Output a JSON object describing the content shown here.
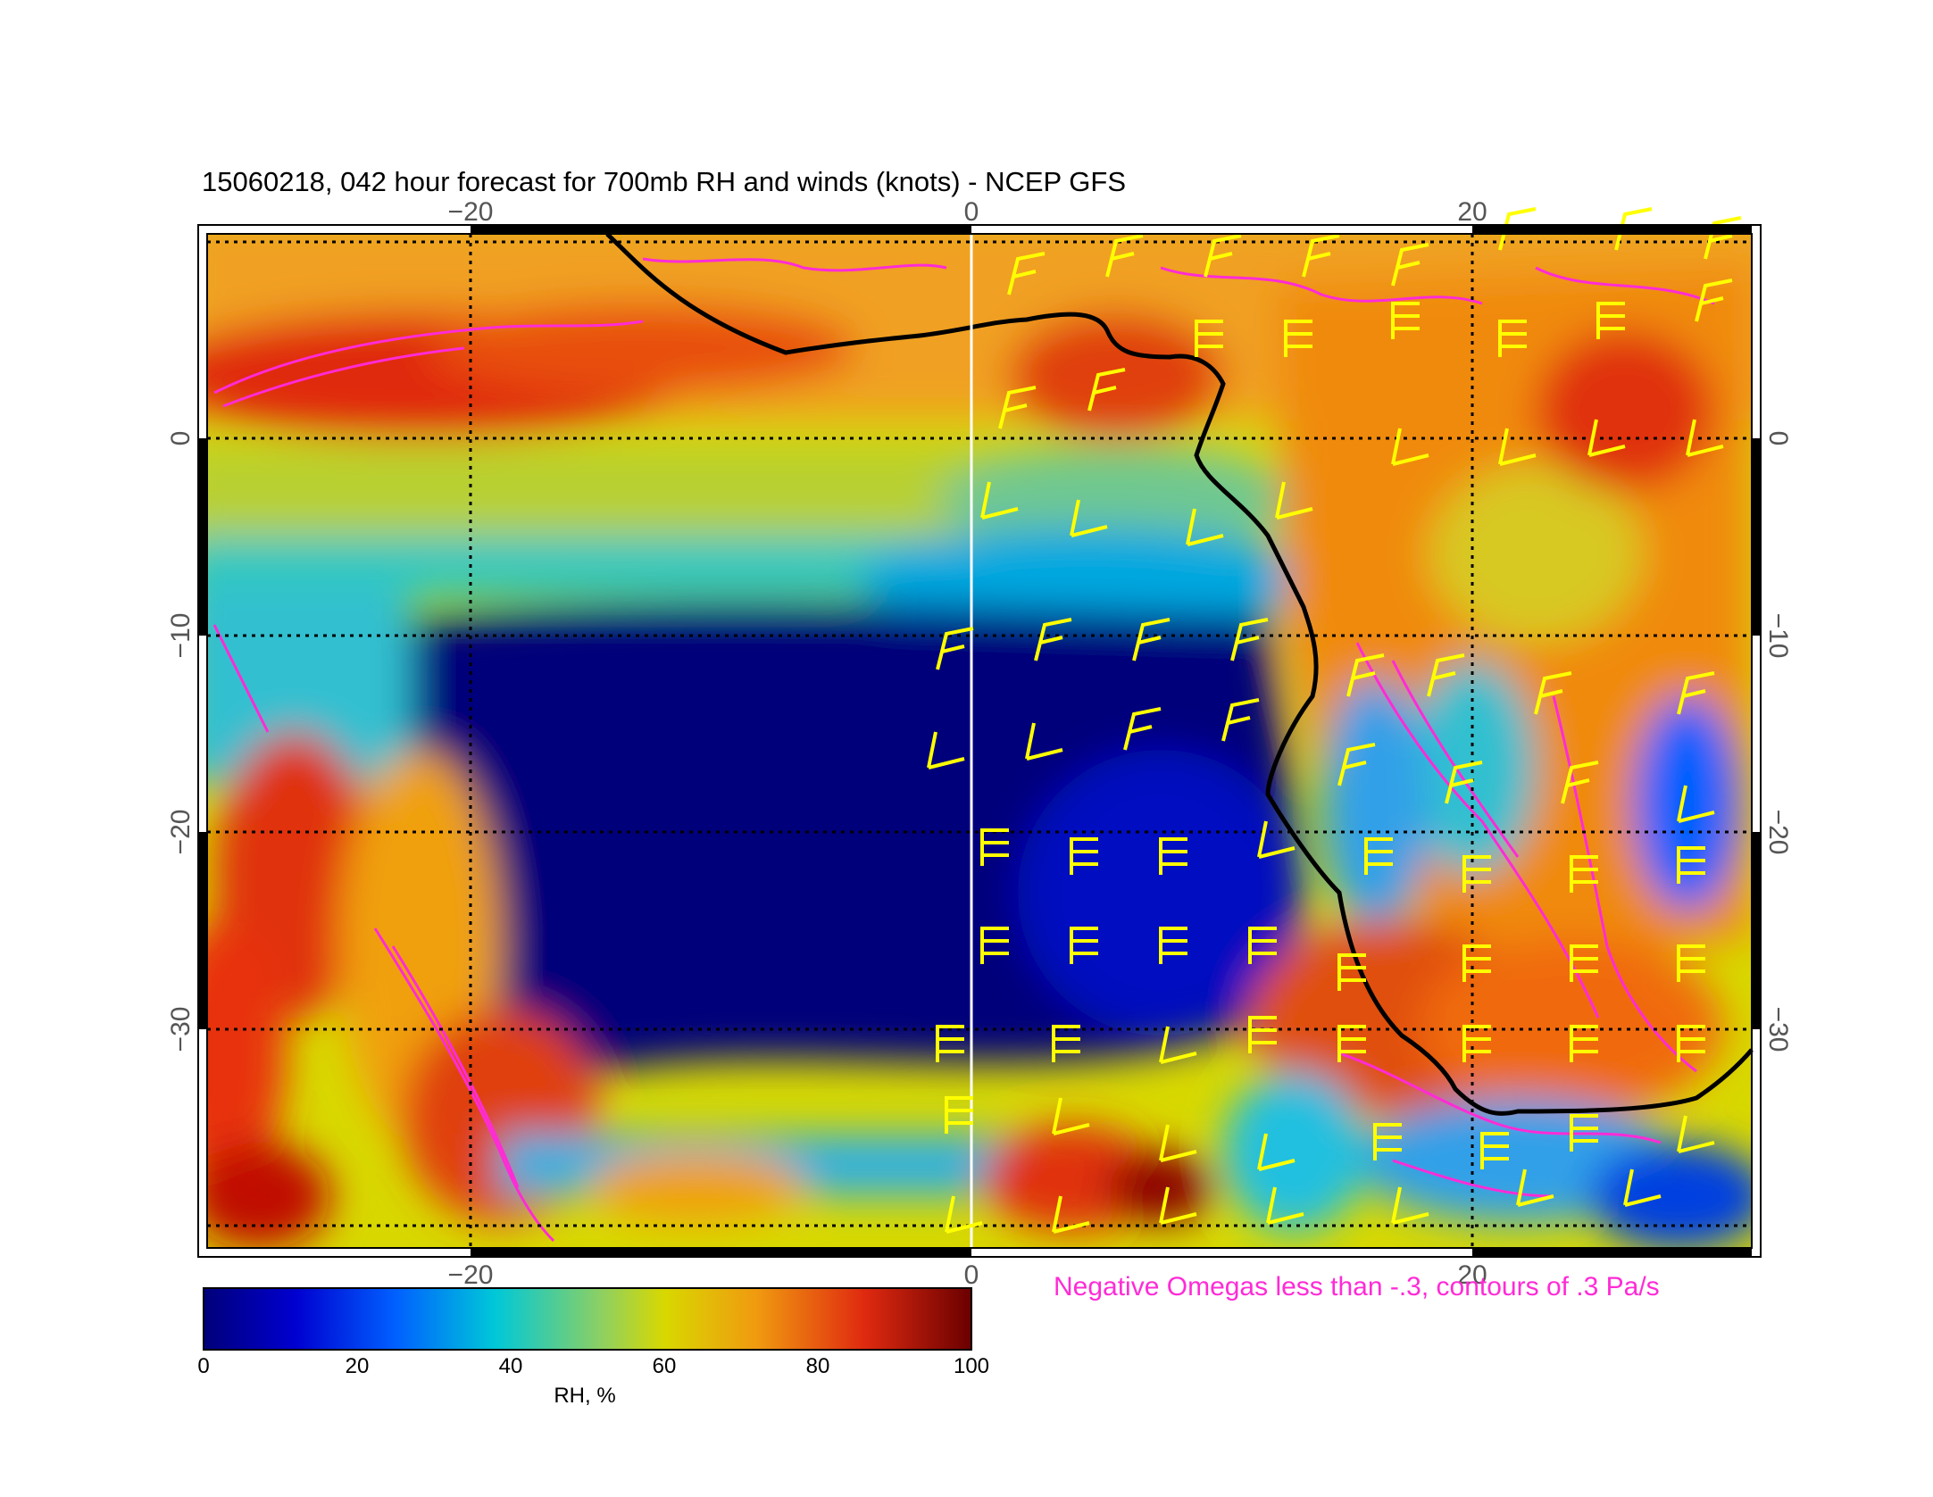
{
  "map": {
    "title": "15060218, 042 hour forecast for 700mb RH and winds (knots) - NCEP GFS",
    "lon_ticks": [
      "−20",
      "0",
      "20"
    ],
    "lat_ticks": [
      "0",
      "−10",
      "−20",
      "−30"
    ],
    "omega_note": "Negative Omegas less than -.3, contours of .3 Pa/s",
    "region": {
      "lon_range": [
        -30,
        31
      ],
      "lat_range": [
        10,
        -41
      ]
    },
    "layers": [
      "700mb RH (filled)",
      "wind barbs (knots)",
      "negative omega contours",
      "coastline"
    ],
    "colors": {
      "coastline": "#000000",
      "wind_barbs": "#ffff00",
      "omega_contours": "#ff2bd6",
      "prime_meridian": "#ffffff",
      "graticule": "#000000"
    }
  },
  "colorbar": {
    "labels": [
      "0",
      "20",
      "40",
      "60",
      "80",
      "100"
    ],
    "title": "RH, %",
    "range": [
      0,
      100
    ],
    "colormap": "jet-like (dark blue → blue → cyan → yellow → orange → red → dark red)"
  }
}
